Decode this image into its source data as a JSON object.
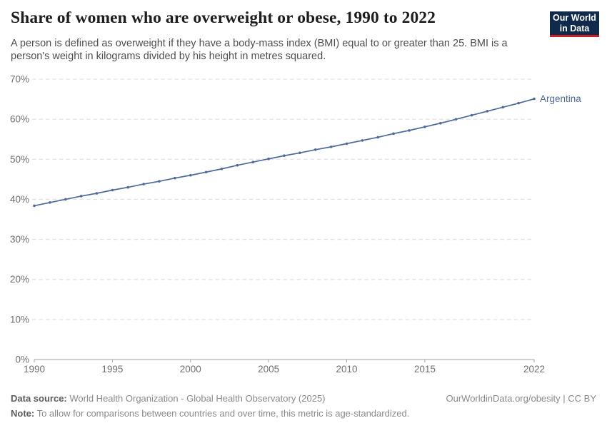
{
  "header": {
    "title": "Share of women who are overweight or obese, 1990 to 2022",
    "subtitle_line1": "A person is defined as overweight if they have a body-mass index (BMI) equal to or greater than 25. BMI is a",
    "subtitle_line2": "person's weight in kilograms divided by his height in metres squared.",
    "logo_line1": "Our World",
    "logo_line2": "in Data"
  },
  "chart_data": {
    "type": "line",
    "title": "Share of women who are overweight or obese, 1990 to 2022",
    "xlabel": "",
    "ylabel": "",
    "xlim": [
      1990,
      2022
    ],
    "ylim": [
      0,
      70
    ],
    "x_ticks": [
      1990,
      1995,
      2000,
      2005,
      2010,
      2015,
      2022
    ],
    "y_ticks": [
      0,
      10,
      20,
      30,
      40,
      50,
      60,
      70
    ],
    "y_tick_suffix": "%",
    "grid": "horizontal-dashed",
    "legend_position": "line-end-label",
    "series": [
      {
        "name": "Argentina",
        "color": "#4c6a9c",
        "x": [
          1990,
          1991,
          1992,
          1993,
          1994,
          1995,
          1996,
          1997,
          1998,
          1999,
          2000,
          2001,
          2002,
          2003,
          2004,
          2005,
          2006,
          2007,
          2008,
          2009,
          2010,
          2011,
          2012,
          2013,
          2014,
          2015,
          2016,
          2017,
          2018,
          2019,
          2020,
          2021,
          2022
        ],
        "values": [
          38.4,
          39.2,
          40.0,
          40.8,
          41.5,
          42.3,
          43.0,
          43.8,
          44.5,
          45.3,
          46.0,
          46.8,
          47.6,
          48.5,
          49.3,
          50.1,
          50.9,
          51.6,
          52.4,
          53.1,
          53.9,
          54.7,
          55.5,
          56.4,
          57.2,
          58.1,
          59.0,
          60.0,
          61.0,
          62.0,
          63.0,
          64.0,
          65.1
        ]
      }
    ]
  },
  "footer": {
    "datasource_label": "Data source:",
    "datasource_text": " World Health Organization - Global Health Observatory (2025)",
    "attribution": "OurWorldinData.org/obesity | CC BY",
    "note_label": "Note:",
    "note_text": " To allow for comparisons between countries and over time, this metric is age-standardized."
  },
  "colors": {
    "line": "#4c6a9c",
    "grid": "#dcdcdc",
    "axis": "#a3a3a3",
    "tick_label": "#6e6e6e",
    "logo_bg": "#102a4c",
    "logo_stripe": "#c72127"
  }
}
